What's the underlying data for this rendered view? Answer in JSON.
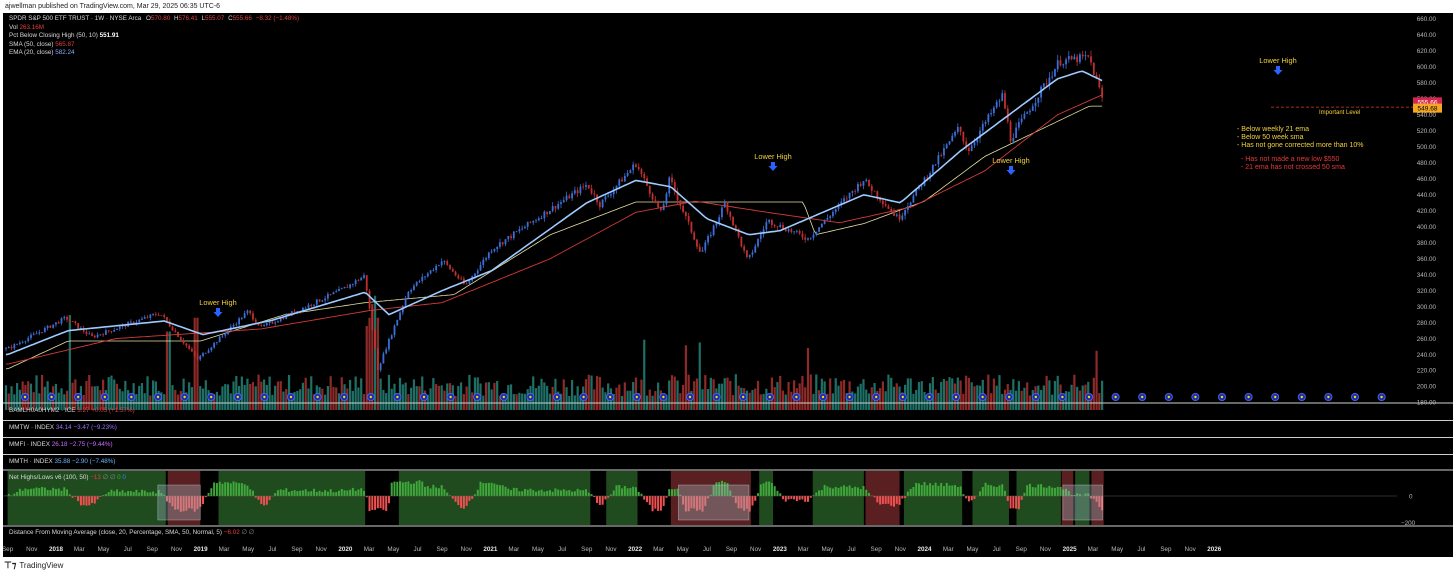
{
  "header": {
    "published": "ajwellman published on TradingView.com, Mar 29, 2025 06:35 UTC-6"
  },
  "legend": {
    "symbol": "SPDR S&P 500 ETF TRUST · 1W · NYSE Arca",
    "o_label": "O",
    "o_value": "570.80",
    "h_label": "H",
    "h_value": "576.41",
    "l_label": "L",
    "l_value": "555.07",
    "c_label": "C",
    "c_value": "555.66",
    "change": "−8.32 (−1.48%)",
    "vol_label": "Vol",
    "vol_value": "263.16M",
    "pct_label": "Pct Below Closing High (50, 10)",
    "pct_value": "551.91",
    "sma_label": "SMA (50, close)",
    "sma_value": "565.87",
    "ema_label": "EMA (20, close)",
    "ema_value": "582.24"
  },
  "panes": {
    "hy": {
      "name": "BAMLH0A0HYM2 · ICE",
      "value": "3.27",
      "change": "+0.05 (+1.57%)"
    },
    "mmtw": {
      "name": "MMTW · INDEX",
      "value": "34.14",
      "change": "−3.47 (−9.23%)"
    },
    "mmfi": {
      "name": "MMFI · INDEX",
      "value": "26.18",
      "change": "−2.75 (−9.44%)"
    },
    "mmth": {
      "name": "MMTH · INDEX",
      "value": "35.88",
      "change": "−2.90 (−7.48%)"
    },
    "nhl": {
      "name": "Net Highs/Lows v6 (100, 50)",
      "value": "−13",
      "extra": "∅ ∅",
      "zero": "0",
      "value2": "0",
      "axis_zero": "0",
      "axis_neg": "−200"
    },
    "dma": {
      "name": "Distance From Moving Average (close, 20, Percentage, SMA, 50, Normal, 5)",
      "value": "−6.02",
      "extra": "∅ ∅"
    }
  },
  "annotations": {
    "lower_high": "Lower High",
    "important_level": "Important Level",
    "notes_yellow": [
      "- Below weekly 21 ema",
      "- Below 50 week sma",
      "- Has not gone corrected more than 10%"
    ],
    "notes_red": [
      "- Has not made a new low $550",
      "- 21 ema has not crossed 50 sma"
    ],
    "price_tag_close": "555.66",
    "price_tag_level": "549.68"
  },
  "chart_data": {
    "type": "candlestick",
    "title": "SPDR S&P 500 ETF TRUST · 1W · NYSE Arca",
    "y_ticks": [
      180,
      200,
      220,
      240,
      260,
      280,
      300,
      320,
      340,
      360,
      380,
      400,
      420,
      440,
      460,
      480,
      500,
      520,
      540,
      560,
      580,
      600,
      620,
      640,
      660
    ],
    "x_ticks": [
      "Sep",
      "Nov",
      "2018",
      "Mar",
      "May",
      "Jul",
      "Sep",
      "Nov",
      "2019",
      "Mar",
      "May",
      "Jul",
      "Sep",
      "Nov",
      "2020",
      "Mar",
      "May",
      "Jul",
      "Sep",
      "Nov",
      "2021",
      "Mar",
      "May",
      "Jul",
      "Sep",
      "Nov",
      "2022",
      "Mar",
      "May",
      "Jul",
      "Sep",
      "Nov",
      "2023",
      "Mar",
      "May",
      "Jul",
      "Sep",
      "Nov",
      "2024",
      "Mar",
      "May",
      "Jul",
      "Sep",
      "Nov",
      "2025",
      "Mar",
      "May",
      "Jul",
      "Sep",
      "Nov",
      "2026"
    ],
    "ylim": [
      180,
      665
    ],
    "price_keypoints": [
      [
        "2017-09-01",
        247
      ],
      [
        "2018-01-26",
        286
      ],
      [
        "2018-04-01",
        262
      ],
      [
        "2018-09-20",
        292
      ],
      [
        "2018-12-24",
        234
      ],
      [
        "2019-04-30",
        294
      ],
      [
        "2019-06-03",
        274
      ],
      [
        "2019-12-27",
        322
      ],
      [
        "2020-02-19",
        339
      ],
      [
        "2020-03-23",
        222
      ],
      [
        "2020-06-08",
        320
      ],
      [
        "2020-09-02",
        358
      ],
      [
        "2020-10-30",
        326
      ],
      [
        "2021-01-04",
        372
      ],
      [
        "2021-09-02",
        453
      ],
      [
        "2021-10-04",
        428
      ],
      [
        "2022-01-03",
        479
      ],
      [
        "2022-03-08",
        416
      ],
      [
        "2022-03-29",
        460
      ],
      [
        "2022-06-16",
        366
      ],
      [
        "2022-08-16",
        430
      ],
      [
        "2022-10-12",
        357
      ],
      [
        "2022-12-01",
        408
      ],
      [
        "2023-03-13",
        385
      ],
      [
        "2023-07-31",
        459
      ],
      [
        "2023-10-27",
        410
      ],
      [
        "2024-03-28",
        524
      ],
      [
        "2024-04-19",
        495
      ],
      [
        "2024-07-16",
        565
      ],
      [
        "2024-08-05",
        510
      ],
      [
        "2024-12-06",
        607
      ],
      [
        "2025-02-19",
        612
      ],
      [
        "2025-03-28",
        555
      ]
    ],
    "ema20_keypoints": [
      [
        "2017-09-01",
        240
      ],
      [
        "2018-02-01",
        270
      ],
      [
        "2018-10-01",
        282
      ],
      [
        "2019-01-07",
        265
      ],
      [
        "2019-07-01",
        283
      ],
      [
        "2020-02-20",
        318
      ],
      [
        "2020-04-20",
        290
      ],
      [
        "2020-09-01",
        320
      ],
      [
        "2021-01-04",
        345
      ],
      [
        "2021-09-01",
        430
      ],
      [
        "2022-01-03",
        458
      ],
      [
        "2022-04-01",
        450
      ],
      [
        "2022-07-01",
        410
      ],
      [
        "2022-10-15",
        390
      ],
      [
        "2023-01-01",
        395
      ],
      [
        "2023-08-01",
        440
      ],
      [
        "2023-11-01",
        430
      ],
      [
        "2024-04-01",
        495
      ],
      [
        "2024-12-01",
        585
      ],
      [
        "2025-02-01",
        595
      ],
      [
        "2025-03-28",
        582
      ]
    ],
    "sma50_keypoints": [
      [
        "2017-09-01",
        228
      ],
      [
        "2018-06-01",
        260
      ],
      [
        "2019-06-01",
        272
      ],
      [
        "2020-03-01",
        295
      ],
      [
        "2020-09-01",
        305
      ],
      [
        "2021-06-01",
        360
      ],
      [
        "2022-01-03",
        418
      ],
      [
        "2022-06-01",
        432
      ],
      [
        "2022-12-01",
        418
      ],
      [
        "2023-06-01",
        405
      ],
      [
        "2023-12-01",
        425
      ],
      [
        "2024-06-01",
        470
      ],
      [
        "2024-12-01",
        540
      ],
      [
        "2025-03-28",
        566
      ]
    ],
    "pct_below_high_keypoints": [
      [
        "2017-09-01",
        222
      ],
      [
        "2018-02-01",
        257
      ],
      [
        "2019-01-01",
        257
      ],
      [
        "2019-08-01",
        290
      ],
      [
        "2020-02-20",
        305
      ],
      [
        "2020-10-01",
        315
      ],
      [
        "2021-06-01",
        390
      ],
      [
        "2022-01-03",
        431
      ],
      [
        "2023-03-01",
        431
      ],
      [
        "2023-04-01",
        390
      ],
      [
        "2023-08-01",
        404
      ],
      [
        "2024-01-01",
        432
      ],
      [
        "2024-06-01",
        488
      ],
      [
        "2025-02-20",
        551
      ],
      [
        "2025-03-28",
        551
      ]
    ],
    "important_level": 549.68,
    "last_close": 555.66
  },
  "colors": {
    "background": "#000000",
    "up": "#1a8a7a",
    "down": "#c0302e",
    "ema": "#9ecbff",
    "sma": "#d23a3a",
    "pct_line": "#e6dfa0",
    "annotation_yellow": "#f2d23c",
    "annotation_red": "#e53935",
    "arrow": "#2962ff",
    "grid_border": "#d0d0d0",
    "nhl_green_bg": "#1f4b1f",
    "nhl_red_bg": "#5a1f20",
    "nhl_bar_green": "#3fa83a",
    "nhl_bar_red": "#f05050"
  },
  "footer": {
    "brand": "TradingView"
  }
}
